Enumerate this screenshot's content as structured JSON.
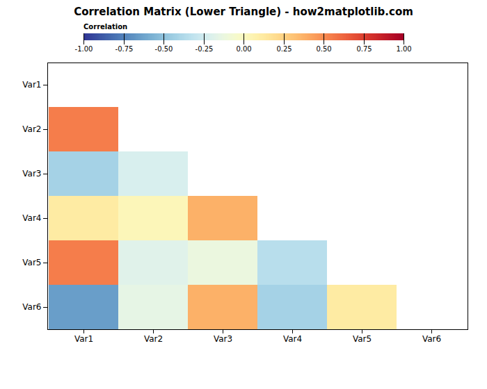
{
  "chart_data": {
    "type": "heatmap",
    "title": "Correlation Matrix (Lower Triangle) - how2matplotlib.com",
    "categories": [
      "Var1",
      "Var2",
      "Var3",
      "Var4",
      "Var5",
      "Var6"
    ],
    "values": [
      [
        null,
        null,
        null,
        null,
        null,
        null
      ],
      [
        0.55,
        null,
        null,
        null,
        null,
        null
      ],
      [
        -0.42,
        -0.22,
        null,
        null,
        null,
        null
      ],
      [
        0.12,
        0.03,
        0.38,
        null,
        null,
        null
      ],
      [
        0.55,
        -0.18,
        -0.12,
        -0.35,
        null,
        null
      ],
      [
        -0.65,
        -0.15,
        0.38,
        -0.42,
        0.12,
        null
      ]
    ],
    "color": "RdYlBu_r",
    "colorbar_label": "Correlation",
    "colorbar_range": [
      -1.0,
      1.0
    ],
    "colorbar_ticks": [
      {
        "value": 1.0,
        "label": "1.00"
      },
      {
        "value": 0.75,
        "label": "0.75"
      },
      {
        "value": 0.5,
        "label": "0.50"
      },
      {
        "value": 0.25,
        "label": "0.25"
      },
      {
        "value": 0.0,
        "label": "0.00"
      },
      {
        "value": -0.25,
        "label": "-0.25"
      },
      {
        "value": -0.5,
        "label": "-0.50"
      },
      {
        "value": -0.75,
        "label": "-0.75"
      },
      {
        "value": -1.0,
        "label": "-1.00"
      }
    ]
  }
}
